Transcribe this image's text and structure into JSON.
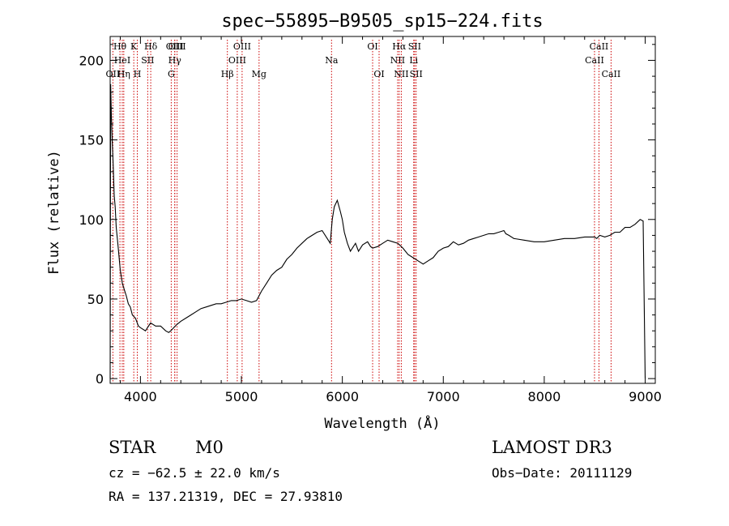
{
  "chart_data": {
    "type": "line",
    "title": "spec−55895−B9505_sp15−224.fits",
    "xlabel": "Wavelength (Å)",
    "ylabel": "Flux (relative)",
    "xlim": [
      3700,
      9100
    ],
    "ylim": [
      -3,
      215
    ],
    "x_ticks": [
      4000,
      5000,
      6000,
      7000,
      8000,
      9000
    ],
    "y_ticks": [
      0,
      50,
      100,
      150,
      200
    ],
    "series": [
      {
        "name": "flux",
        "x": [
          3700,
          3705,
          3712,
          3720,
          3730,
          3740,
          3750,
          3760,
          3780,
          3800,
          3820,
          3840,
          3860,
          3880,
          3900,
          3920,
          3950,
          3980,
          4000,
          4050,
          4100,
          4150,
          4200,
          4250,
          4280,
          4300,
          4330,
          4360,
          4400,
          4450,
          4500,
          4550,
          4600,
          4650,
          4700,
          4750,
          4800,
          4850,
          4900,
          4950,
          5000,
          5050,
          5100,
          5150,
          5200,
          5250,
          5300,
          5350,
          5400,
          5450,
          5500,
          5550,
          5600,
          5650,
          5700,
          5750,
          5800,
          5850,
          5880,
          5900,
          5920,
          5950,
          5980,
          6000,
          6020,
          6050,
          6080,
          6100,
          6130,
          6160,
          6200,
          6250,
          6280,
          6300,
          6350,
          6400,
          6450,
          6500,
          6550,
          6600,
          6650,
          6700,
          6750,
          6800,
          6850,
          6900,
          6950,
          7000,
          7050,
          7100,
          7150,
          7200,
          7250,
          7300,
          7350,
          7400,
          7450,
          7500,
          7550,
          7600,
          7620,
          7650,
          7700,
          7800,
          7900,
          8000,
          8100,
          8200,
          8300,
          8400,
          8450,
          8500,
          8520,
          8550,
          8600,
          8650,
          8700,
          8750,
          8800,
          8850,
          8900,
          8950,
          8980,
          9000
        ],
        "y": [
          0,
          185,
          165,
          150,
          135,
          115,
          108,
          95,
          82,
          68,
          60,
          56,
          52,
          47,
          45,
          40,
          38,
          33,
          32,
          30,
          35,
          33,
          33,
          30,
          29,
          30,
          32,
          34,
          36,
          38,
          40,
          42,
          44,
          45,
          46,
          47,
          47,
          48,
          49,
          49,
          50,
          49,
          48,
          49,
          55,
          60,
          65,
          68,
          70,
          75,
          78,
          82,
          85,
          88,
          90,
          92,
          93,
          88,
          85,
          100,
          108,
          112,
          105,
          100,
          92,
          85,
          80,
          82,
          85,
          80,
          84,
          86,
          83,
          82,
          83,
          85,
          87,
          86,
          85,
          82,
          78,
          76,
          74,
          72,
          74,
          76,
          80,
          82,
          83,
          86,
          84,
          85,
          87,
          88,
          89,
          90,
          91,
          91,
          92,
          93,
          91,
          90,
          88,
          87,
          86,
          86,
          87,
          88,
          88,
          89,
          89,
          89,
          88,
          90,
          89,
          90,
          92,
          92,
          95,
          95,
          97,
          100,
          99,
          0
        ]
      }
    ],
    "lines": [
      {
        "name": "Hθ",
        "x": 3797,
        "row": 0
      },
      {
        "name": "OII",
        "x": 3727,
        "row": 2
      },
      {
        "name": "HeI",
        "x": 3820,
        "row": 1
      },
      {
        "name": "Hη",
        "x": 3835,
        "row": 2
      },
      {
        "name": "K",
        "x": 3934,
        "row": 0
      },
      {
        "name": "H",
        "x": 3969,
        "row": 2
      },
      {
        "name": "SII",
        "x": 4072,
        "row": 1
      },
      {
        "name": "Hδ",
        "x": 4102,
        "row": 0
      },
      {
        "name": "G",
        "x": 4305,
        "row": 2
      },
      {
        "name": "OIII",
        "x": 4340,
        "row": 0
      },
      {
        "name": "Hγ",
        "x": 4340,
        "row": 1
      },
      {
        "name": "OIII",
        "x": 4363,
        "row": 0
      },
      {
        "name": "Hβ",
        "x": 4861,
        "row": 2
      },
      {
        "name": "OIII",
        "x": 4959,
        "row": 1
      },
      {
        "name": "OIII",
        "x": 5007,
        "row": 0
      },
      {
        "name": "Mg",
        "x": 5175,
        "row": 2
      },
      {
        "name": "Na",
        "x": 5893,
        "row": 1
      },
      {
        "name": "OI",
        "x": 6300,
        "row": 0
      },
      {
        "name": "OI",
        "x": 6364,
        "row": 2
      },
      {
        "name": "Hα",
        "x": 6563,
        "row": 0
      },
      {
        "name": "NII",
        "x": 6548,
        "row": 1
      },
      {
        "name": "NII",
        "x": 6584,
        "row": 2
      },
      {
        "name": "Li",
        "x": 6707,
        "row": 1
      },
      {
        "name": "SII",
        "x": 6716,
        "row": 0
      },
      {
        "name": "SII",
        "x": 6731,
        "row": 2
      },
      {
        "name": "CaII",
        "x": 8498,
        "row": 1
      },
      {
        "name": "CaII",
        "x": 8542,
        "row": 0
      },
      {
        "name": "CaII",
        "x": 8662,
        "row": 2
      }
    ],
    "line_color": "#cc0000",
    "grid": false
  },
  "info": {
    "object_class": "STAR",
    "subclass": "M0",
    "survey": "LAMOST DR3",
    "redshift": "cz = −62.5 ± 22.0 km/s",
    "obs_date": "Obs−Date: 20111129",
    "coords": "RA = 137.21319, DEC =  27.93810"
  }
}
